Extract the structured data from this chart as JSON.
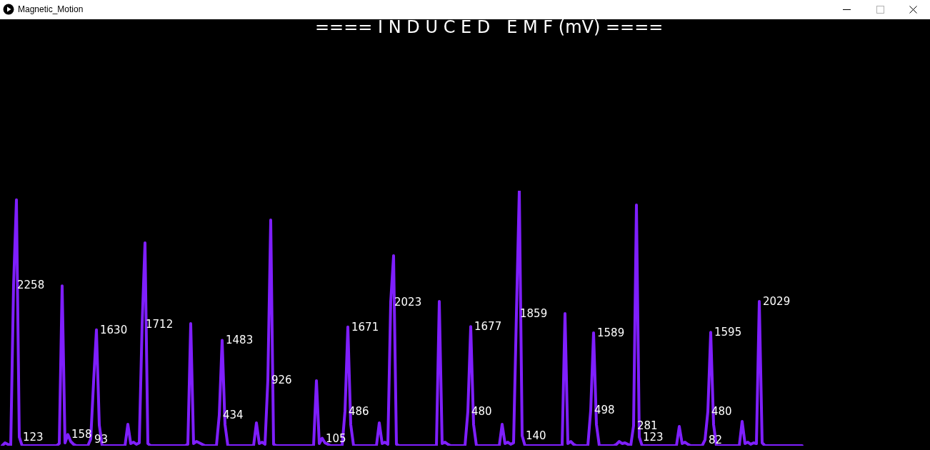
{
  "chart_data": {
    "type": "line",
    "title": "==== I N D U C E D   E M F (mV) ====",
    "annotations": [
      "Magnetic_Motion"
    ],
    "color": "#7f1fff",
    "tick_labels": false,
    "categories": [
      null,
      null,
      null,
      null,
      null,
      null,
      null,
      null,
      null,
      null,
      null,
      null,
      null,
      null,
      null,
      null,
      null,
      null,
      null,
      null,
      null,
      null,
      null,
      null,
      null,
      null,
      null,
      null,
      null,
      null,
      null,
      null,
      null,
      null,
      null,
      null,
      null,
      null,
      null,
      null,
      null,
      null,
      null,
      null,
      null,
      null,
      null,
      null,
      null,
      null,
      null,
      null,
      null,
      null,
      null,
      null,
      null,
      null,
      null,
      null,
      null,
      null,
      null,
      null,
      null,
      null,
      null,
      null,
      null,
      null,
      null,
      null,
      null,
      null,
      null,
      null,
      null,
      null,
      null,
      null,
      null,
      null,
      null,
      null,
      null,
      null,
      null,
      null,
      null,
      null,
      null,
      null,
      null,
      null,
      null,
      null,
      null,
      null,
      null,
      null,
      null,
      null,
      null,
      null,
      null,
      null,
      null,
      null,
      null,
      null,
      null,
      null,
      null,
      null,
      null,
      null,
      null,
      null,
      null,
      null,
      null,
      null,
      null,
      null,
      null,
      null,
      null,
      null,
      null,
      null,
      null,
      null,
      null,
      null,
      null,
      null,
      null,
      null,
      null,
      null,
      null,
      null,
      null,
      null,
      null,
      null,
      null,
      null,
      null,
      null,
      null,
      null,
      null,
      null,
      null,
      null,
      null,
      null,
      null,
      null,
      null,
      null,
      null,
      null,
      null,
      null,
      null,
      null,
      null,
      null,
      null,
      null,
      null,
      null,
      null,
      null,
      null,
      null,
      null,
      null,
      null,
      null,
      null,
      null,
      null,
      null,
      null,
      null,
      null,
      null,
      null,
      null,
      null,
      null,
      null,
      null,
      null,
      null,
      null,
      null,
      null,
      null,
      null,
      null,
      null,
      null,
      null,
      null,
      null,
      null,
      null,
      null,
      null,
      null,
      null,
      null,
      null,
      null,
      null,
      null,
      null,
      null,
      null,
      null,
      null,
      null,
      null,
      null,
      null,
      null,
      null,
      null,
      null,
      null,
      null,
      null,
      null,
      null,
      null,
      null,
      null,
      null,
      null,
      null,
      null,
      null,
      null,
      null,
      null,
      null,
      null,
      null,
      null,
      null,
      null,
      null,
      null,
      null,
      null,
      null,
      null,
      null,
      null,
      null,
      null,
      null,
      null,
      null,
      null,
      null,
      null,
      null,
      null,
      null,
      null,
      null,
      null,
      null,
      null,
      null,
      null
    ],
    "values": [
      0,
      40,
      20,
      0,
      2258,
      3460,
      123,
      0,
      0,
      0,
      0,
      0,
      0,
      0,
      0,
      0,
      0,
      0,
      0,
      0,
      30,
      2250,
      40,
      158,
      60,
      20,
      0,
      0,
      0,
      0,
      0,
      93,
      894,
      1630,
      291,
      0,
      0,
      0,
      0,
      0,
      0,
      0,
      0,
      0,
      302,
      30,
      50,
      20,
      40,
      1712,
      2854,
      30,
      0,
      0,
      0,
      0,
      0,
      0,
      0,
      0,
      0,
      0,
      0,
      0,
      0,
      20,
      1719,
      30,
      60,
      40,
      20,
      0,
      0,
      0,
      0,
      0,
      434,
      1483,
      300,
      0,
      0,
      0,
      0,
      0,
      0,
      0,
      0,
      0,
      0,
      322,
      30,
      50,
      20,
      926,
      3176,
      20,
      0,
      0,
      0,
      0,
      0,
      0,
      0,
      0,
      0,
      0,
      0,
      0,
      0,
      0,
      915,
      30,
      105,
      40,
      20,
      0,
      0,
      0,
      0,
      0,
      486,
      1671,
      300,
      0,
      0,
      0,
      0,
      0,
      0,
      0,
      0,
      0,
      322,
      30,
      50,
      20,
      2023,
      2673,
      20,
      0,
      0,
      0,
      0,
      0,
      0,
      0,
      0,
      0,
      0,
      0,
      0,
      0,
      0,
      2030,
      30,
      50,
      20,
      0,
      0,
      0,
      0,
      0,
      0,
      480,
      1677,
      300,
      0,
      0,
      0,
      0,
      0,
      0,
      0,
      0,
      0,
      302,
      30,
      50,
      20,
      40,
      1859,
      3588,
      140,
      0,
      0,
      0,
      0,
      0,
      0,
      0,
      0,
      0,
      0,
      0,
      0,
      0,
      0,
      1859,
      30,
      60,
      20,
      0,
      0,
      0,
      0,
      0,
      498,
      1589,
      300,
      0,
      0,
      0,
      0,
      0,
      0,
      20,
      60,
      30,
      40,
      20,
      0,
      281,
      3387,
      123,
      0,
      0,
      0,
      0,
      0,
      0,
      0,
      0,
      0,
      0,
      0,
      0,
      0,
      271,
      30,
      50,
      20,
      0,
      0,
      0,
      0,
      0,
      82,
      480,
      1595,
      300,
      0,
      0,
      0,
      0,
      0,
      0,
      0,
      0,
      0,
      342,
      30,
      50,
      20,
      40,
      30,
      2029,
      40,
      0,
      0,
      0,
      0,
      0,
      0,
      0,
      0,
      0,
      0,
      0,
      0,
      0,
      0
    ],
    "value_labels": [
      null,
      null,
      null,
      null,
      "2258",
      null,
      "123",
      null,
      null,
      null,
      null,
      null,
      null,
      null,
      null,
      null,
      null,
      null,
      null,
      null,
      null,
      null,
      null,
      "158",
      null,
      null,
      null,
      null,
      null,
      null,
      null,
      "93",
      null,
      "1630",
      null,
      null,
      null,
      null,
      null,
      null,
      null,
      null,
      null,
      null,
      null,
      null,
      null,
      null,
      null,
      "1712",
      null,
      null,
      null,
      null,
      null,
      null,
      null,
      null,
      null,
      null,
      null,
      null,
      null,
      null,
      null,
      null,
      null,
      null,
      null,
      null,
      null,
      null,
      null,
      null,
      null,
      null,
      "434",
      "1483",
      null,
      null,
      null,
      null,
      null,
      null,
      null,
      null,
      null,
      null,
      null,
      null,
      null,
      null,
      null,
      "926",
      null,
      null,
      null,
      null,
      null,
      null,
      null,
      null,
      null,
      null,
      null,
      null,
      null,
      null,
      null,
      null,
      null,
      null,
      "105",
      null,
      null,
      null,
      null,
      null,
      null,
      null,
      "486",
      "1671",
      null,
      null,
      null,
      null,
      null,
      null,
      null,
      null,
      null,
      null,
      null,
      null,
      null,
      null,
      "2023",
      null,
      null,
      null,
      null,
      null,
      null,
      null,
      null,
      null,
      null,
      null,
      null,
      null,
      null,
      null,
      null,
      null,
      null,
      null,
      null,
      null,
      null,
      null,
      null,
      null,
      null,
      "480",
      "1677",
      null,
      null,
      null,
      null,
      null,
      null,
      null,
      null,
      null,
      null,
      null,
      null,
      null,
      null,
      null,
      "1859",
      null,
      "140",
      null,
      null,
      null,
      null,
      null,
      null,
      null,
      null,
      null,
      null,
      null,
      null,
      null,
      null,
      null,
      null,
      null,
      null,
      null,
      null,
      null,
      null,
      null,
      "498",
      "1589",
      null,
      null,
      null,
      null,
      null,
      null,
      null,
      null,
      null,
      null,
      null,
      null,
      null,
      "281",
      null,
      "123",
      null,
      null,
      null,
      null,
      null,
      null,
      null,
      null,
      null,
      null,
      null,
      null,
      null,
      null,
      null,
      null,
      null,
      null,
      null,
      null,
      null,
      null,
      "82",
      "480",
      "1595",
      null,
      null,
      null,
      null,
      null,
      null,
      null,
      null,
      null,
      null,
      null,
      null,
      null,
      null,
      null,
      null,
      "2029",
      null,
      null,
      null,
      null,
      null,
      null,
      null,
      null,
      null,
      null,
      null,
      null,
      null,
      null,
      null
    ]
  }
}
